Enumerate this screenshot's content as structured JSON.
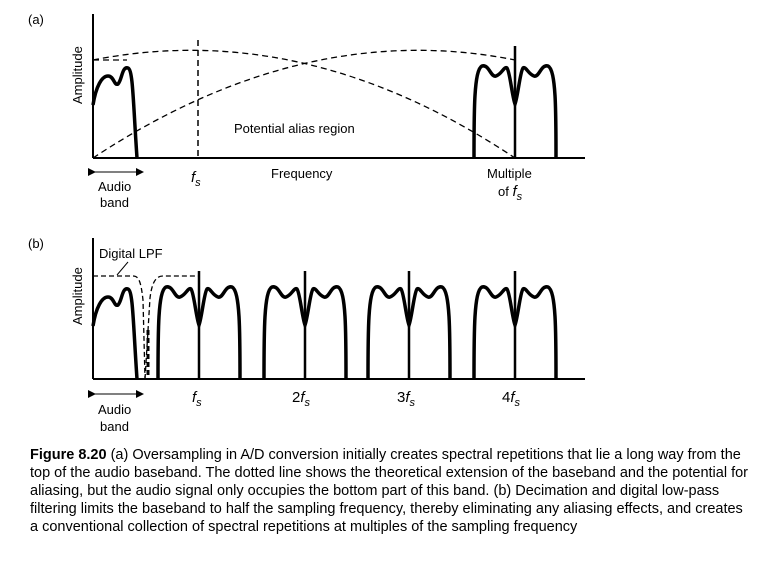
{
  "panel_a": {
    "label": "(a)",
    "y_axis": "Amplitude",
    "region_label": "Potential alias region",
    "audio_band_line1": "Audio",
    "audio_band_line2": "band",
    "fs_letter": "f",
    "fs_sub": "s",
    "frequency_label": "Frequency",
    "multiple_line1": "Multiple",
    "multiple_line2_prefix": "of ",
    "multiple_fs_letter": "f",
    "multiple_fs_sub": "s"
  },
  "panel_b": {
    "label": "(b)",
    "y_axis": "Amplitude",
    "lpf_label": "Digital LPF",
    "audio_band_line1": "Audio",
    "audio_band_line2": "band",
    "ticks": [
      {
        "coef": "",
        "letter": "f",
        "sub": "s"
      },
      {
        "coef": "2",
        "letter": "f",
        "sub": "s"
      },
      {
        "coef": "3",
        "letter": "f",
        "sub": "s"
      },
      {
        "coef": "4",
        "letter": "f",
        "sub": "s"
      }
    ]
  },
  "caption": {
    "fig_label": "Figure 8.20",
    "text": " (a) Oversampling in A/D conversion initially creates spectral repetitions that lie a long way from the top of the audio baseband. The dotted line shows the theoretical extension of the baseband and the potential for aliasing, but the audio signal only occupies the bottom part of this band. (b) Decimation and digital low-pass filtering limits the baseband to half the sampling frequency, thereby eliminating any aliasing effects, and creates a conventional collection of spectral repetitions at multiples of the sampling frequency"
  }
}
